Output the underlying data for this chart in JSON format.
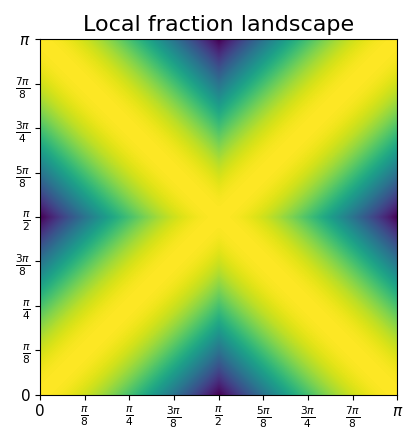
{
  "title": "Local fraction landscape",
  "colormap": "viridis",
  "xlim": [
    0,
    3.14159265358979
  ],
  "ylim": [
    0,
    3.14159265358979
  ],
  "n_points": 500,
  "xtick_positions": [
    0,
    0.39269908,
    0.78539816,
    1.17809724,
    1.57079632,
    1.96349541,
    2.35619449,
    2.74889357,
    3.14159265
  ],
  "xtick_labels": [
    "0",
    "$\\frac{\\pi}{8}$",
    "$\\frac{\\pi}{4}$",
    "$\\frac{3\\pi}{8}$",
    "$\\frac{\\pi}{2}$",
    "$\\frac{5\\pi}{8}$",
    "$\\frac{3\\pi}{4}$",
    "$\\frac{7\\pi}{8}$",
    "$\\pi$"
  ],
  "ytick_positions": [
    0,
    0.39269908,
    0.78539816,
    1.17809724,
    1.57079632,
    1.96349541,
    2.35619449,
    2.74889357,
    3.14159265
  ],
  "ytick_labels": [
    "0",
    "$\\frac{\\pi}{8}$",
    "$\\frac{\\pi}{4}$",
    "$\\frac{3\\pi}{8}$",
    "$\\frac{\\pi}{2}$",
    "$\\frac{5\\pi}{8}$",
    "$\\frac{3\\pi}{4}$",
    "$\\frac{7\\pi}{8}$",
    "$\\pi$"
  ],
  "title_fontsize": 16,
  "tick_fontsize": 11,
  "figsize": [
    4.18,
    4.45
  ],
  "dpi": 100
}
